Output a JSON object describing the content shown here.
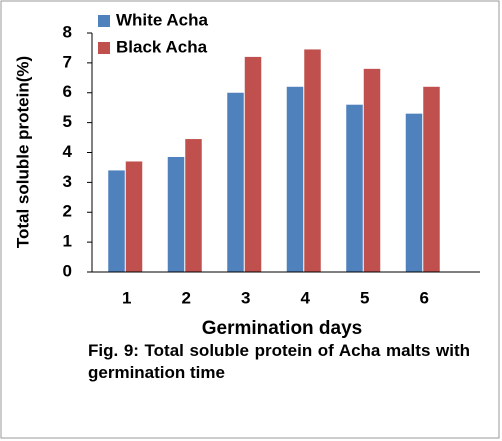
{
  "chart_data": {
    "type": "bar",
    "y_label": "Total soluble protein(%)",
    "x_label": "Germination days",
    "caption": "Fig. 9: Total soluble protein of Acha malts with germination time",
    "categories": [
      "1",
      "2",
      "3",
      "4",
      "5",
      "6"
    ],
    "series": [
      {
        "name": "White Acha",
        "color": "#4f81bd",
        "values": [
          3.4,
          3.85,
          6.0,
          6.2,
          5.6,
          5.3
        ]
      },
      {
        "name": "Black Acha",
        "color": "#c0504d",
        "values": [
          3.7,
          4.45,
          7.2,
          7.45,
          6.8,
          6.2
        ]
      }
    ],
    "ylim": [
      0,
      8
    ],
    "yticks": [
      0,
      1,
      2,
      3,
      4,
      5,
      6,
      7,
      8
    ],
    "grid": false,
    "legend": "top-left"
  }
}
